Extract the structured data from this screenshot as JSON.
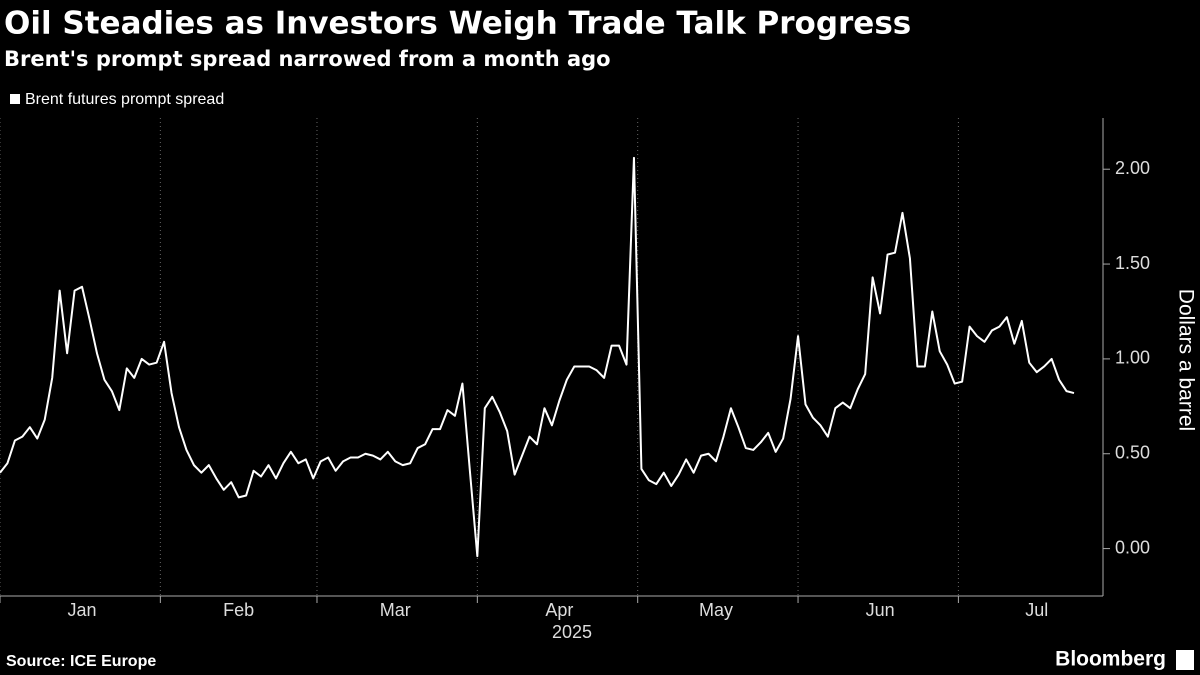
{
  "chart_data": {
    "type": "line",
    "title": "Oil Steadies as Investors Weigh Trade Talk Progress",
    "subtitle": "Brent's prompt spread narrowed from a month ago",
    "source": "Source: ICE Europe",
    "brand": "Bloomberg",
    "xlabel": "2025",
    "ylabel": "Dollars a barrel",
    "ylim": [
      -0.25,
      2.27
    ],
    "yticks": [
      {
        "value": 0,
        "label": "0.00"
      },
      {
        "value": 0.5,
        "label": "0.50"
      },
      {
        "value": 1,
        "label": "1.00"
      },
      {
        "value": 1.5,
        "label": "1.50"
      },
      {
        "value": 2,
        "label": "2.00"
      }
    ],
    "grid": true,
    "legend": "top-left",
    "categories": [
      null,
      null,
      null,
      null,
      null,
      null,
      null,
      null,
      null,
      null,
      null,
      "Jan",
      null,
      null,
      null,
      null,
      null,
      null,
      null,
      null,
      null,
      null,
      null,
      null,
      null,
      null,
      null,
      null,
      null,
      null,
      null,
      null,
      "Feb",
      null,
      null,
      null,
      null,
      null,
      null,
      null,
      null,
      null,
      null,
      null,
      null,
      null,
      null,
      null,
      null,
      null,
      null,
      null,
      null,
      "Mar",
      null,
      null,
      null,
      null,
      null,
      null,
      null,
      null,
      null,
      null,
      null,
      null,
      null,
      null,
      null,
      null,
      null,
      null,
      null,
      null,
      null,
      "Apr",
      null,
      null,
      null,
      null,
      null,
      null,
      null,
      null,
      null,
      null,
      null,
      null,
      null,
      null,
      null,
      null,
      null,
      null,
      null,
      null,
      "May",
      null,
      null,
      null,
      null,
      null,
      null,
      null,
      null,
      null,
      null,
      null,
      null,
      null,
      null,
      null,
      null,
      null,
      null,
      null,
      null,
      null,
      "Jun",
      null,
      null,
      null,
      null,
      null,
      null,
      null,
      null,
      null,
      null,
      null,
      null,
      null,
      null,
      null,
      null,
      null,
      null,
      null,
      null,
      "Jul",
      null,
      null,
      null,
      null,
      null
    ],
    "series": [
      {
        "name": "Brent futures prompt spread",
        "color": "#ffffff",
        "values": [
          0.4,
          0.45,
          0.57,
          0.59,
          0.64,
          0.58,
          0.68,
          0.9,
          1.36,
          1.03,
          1.36,
          1.38,
          1.21,
          1.03,
          0.89,
          0.83,
          0.73,
          0.95,
          0.9,
          1.0,
          0.97,
          0.98,
          1.09,
          0.82,
          0.64,
          0.52,
          0.44,
          0.4,
          0.44,
          0.37,
          0.31,
          0.35,
          0.27,
          0.28,
          0.41,
          0.38,
          0.44,
          0.37,
          0.45,
          0.51,
          0.45,
          0.47,
          0.37,
          0.46,
          0.48,
          0.41,
          0.46,
          0.48,
          0.48,
          0.5,
          0.49,
          0.47,
          0.51,
          0.46,
          0.44,
          0.45,
          0.53,
          0.55,
          0.63,
          0.63,
          0.73,
          0.7,
          0.87,
          0.41,
          -0.04,
          0.74,
          0.8,
          0.72,
          0.62,
          0.39,
          0.49,
          0.59,
          0.55,
          0.74,
          0.65,
          0.78,
          0.89,
          0.96,
          0.96,
          0.96,
          0.94,
          0.9,
          1.07,
          1.07,
          0.97,
          2.06,
          0.42,
          0.36,
          0.34,
          0.4,
          0.33,
          0.39,
          0.47,
          0.4,
          0.49,
          0.5,
          0.46,
          0.59,
          0.74,
          0.64,
          0.53,
          0.52,
          0.56,
          0.61,
          0.51,
          0.58,
          0.79,
          1.12,
          0.76,
          0.69,
          0.65,
          0.59,
          0.74,
          0.77,
          0.74,
          0.84,
          0.92,
          1.43,
          1.24,
          1.55,
          1.56,
          1.77,
          1.53,
          0.96,
          0.96,
          1.25,
          1.04,
          0.97,
          0.87,
          0.88,
          1.17,
          1.12,
          1.09,
          1.15,
          1.17,
          1.22,
          1.08,
          1.2,
          0.98,
          0.93,
          0.96,
          1.0,
          0.89,
          0.83,
          0.82
        ]
      }
    ]
  }
}
